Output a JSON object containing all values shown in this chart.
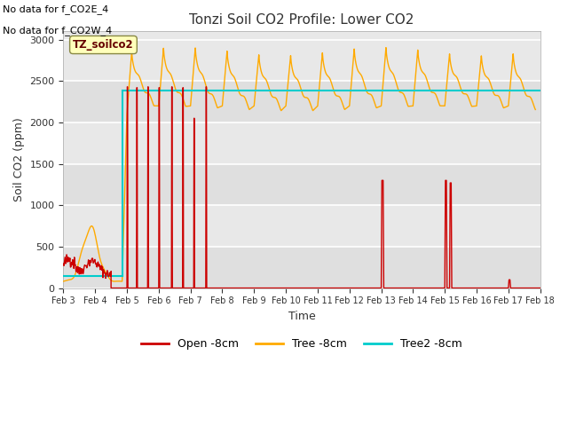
{
  "title": "Tonzi Soil CO2 Profile: Lower CO2",
  "xlabel": "Time",
  "ylabel": "Soil CO2 (ppm)",
  "ylim": [
    0,
    3100
  ],
  "xlim": [
    0,
    15
  ],
  "fig_facecolor": "#ffffff",
  "plot_bg_color": "#e8e8e8",
  "note_line1": "No data for f_CO2E_4",
  "note_line2": "No data for f_CO2W_4",
  "watermark": "TZ_soilco2",
  "legend_labels": [
    "Open -8cm",
    "Tree -8cm",
    "Tree2 -8cm"
  ],
  "open_color": "#cc0000",
  "tree_color": "#ffaa00",
  "tree2_color": "#00cccc",
  "tree2_value": 2390,
  "xtick_labels": [
    "Feb 3",
    "Feb 4",
    "Feb 5",
    "Feb 6",
    "Feb 7",
    "Feb 8",
    "Feb 9",
    "Feb 10",
    "Feb 11",
    "Feb 12",
    "Feb 13",
    "Feb 14",
    "Feb 15",
    "Feb 16",
    "Feb 17",
    "Feb 18"
  ],
  "xtick_positions": [
    0,
    1,
    2,
    3,
    4,
    5,
    6,
    7,
    8,
    9,
    10,
    11,
    12,
    13,
    14,
    15
  ],
  "ytick_positions": [
    0,
    500,
    1000,
    1500,
    2000,
    2500,
    3000
  ]
}
